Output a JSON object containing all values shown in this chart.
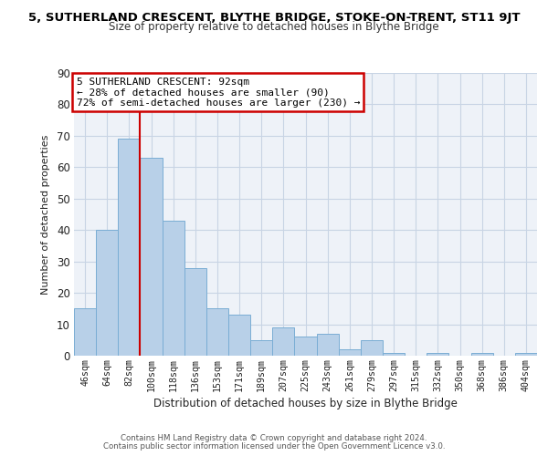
{
  "title_line1": "5, SUTHERLAND CRESCENT, BLYTHE BRIDGE, STOKE-ON-TRENT, ST11 9JT",
  "title_line2": "Size of property relative to detached houses in Blythe Bridge",
  "xlabel": "Distribution of detached houses by size in Blythe Bridge",
  "ylabel": "Number of detached properties",
  "footer_line1": "Contains HM Land Registry data © Crown copyright and database right 2024.",
  "footer_line2": "Contains public sector information licensed under the Open Government Licence v3.0.",
  "bar_labels": [
    "46sqm",
    "64sqm",
    "82sqm",
    "100sqm",
    "118sqm",
    "136sqm",
    "153sqm",
    "171sqm",
    "189sqm",
    "207sqm",
    "225sqm",
    "243sqm",
    "261sqm",
    "279sqm",
    "297sqm",
    "315sqm",
    "332sqm",
    "350sqm",
    "368sqm",
    "386sqm",
    "404sqm"
  ],
  "bar_heights": [
    15,
    40,
    69,
    63,
    43,
    28,
    15,
    13,
    5,
    9,
    6,
    7,
    2,
    5,
    1,
    0,
    1,
    0,
    1,
    0,
    1
  ],
  "bar_color": "#b8d0e8",
  "bar_edgecolor": "#7aadd4",
  "ylim": [
    0,
    90
  ],
  "yticks": [
    0,
    10,
    20,
    30,
    40,
    50,
    60,
    70,
    80,
    90
  ],
  "vline_x": 2.5,
  "vline_color": "#cc0000",
  "annotation_title": "5 SUTHERLAND CRESCENT: 92sqm",
  "annotation_line2": "← 28% of detached houses are smaller (90)",
  "annotation_line3": "72% of semi-detached houses are larger (230) →",
  "bg_color": "#ffffff",
  "plot_bg_color": "#eef2f8",
  "grid_color": "#c8d4e4"
}
